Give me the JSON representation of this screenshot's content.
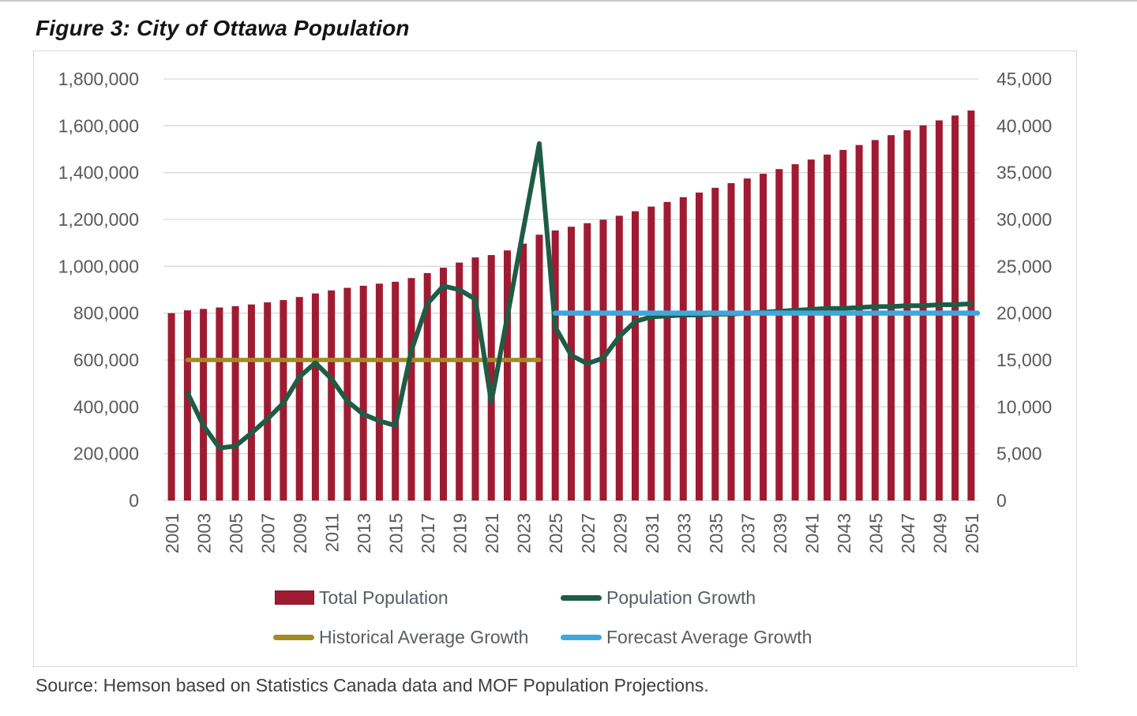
{
  "page": {
    "title": "Figure 3: City of Ottawa Population",
    "source_note": "Source: Hemson based on Statistics Canada data and MOF Population Projections."
  },
  "legend": [
    {
      "label": "Total Population",
      "swatch": "bar",
      "color": "#9e1b32"
    },
    {
      "label": "Population Growth",
      "swatch": "line",
      "color": "#1e5c45"
    },
    {
      "label": "Historical Average Growth",
      "swatch": "line",
      "color": "#a18c24"
    },
    {
      "label": "Forecast Average Growth",
      "swatch": "line",
      "color": "#3fa7dc"
    }
  ],
  "chart_data": {
    "type": "bar",
    "subtype": "combo-bar-line",
    "title": "Figure 3: City of Ottawa Population",
    "grid": true,
    "legend_position": "bottom",
    "x": [
      2001,
      2002,
      2003,
      2004,
      2005,
      2006,
      2007,
      2008,
      2009,
      2010,
      2011,
      2012,
      2013,
      2014,
      2015,
      2016,
      2017,
      2018,
      2019,
      2020,
      2021,
      2022,
      2023,
      2024,
      2025,
      2026,
      2027,
      2028,
      2029,
      2030,
      2031,
      2032,
      2033,
      2034,
      2035,
      2036,
      2037,
      2038,
      2039,
      2040,
      2041,
      2042,
      2043,
      2044,
      2045,
      2046,
      2047,
      2048,
      2049,
      2050,
      2051
    ],
    "x_tick_labels": [
      "2001",
      "2003",
      "2005",
      "2007",
      "2009",
      "2011",
      "2013",
      "2015",
      "2017",
      "2019",
      "2021",
      "2023",
      "2025",
      "2027",
      "2029",
      "2031",
      "2033",
      "2035",
      "2037",
      "2039",
      "2041",
      "2043",
      "2045",
      "2047",
      "2049",
      "2051"
    ],
    "left_axis": {
      "min": 0,
      "max": 1800000,
      "step": 200000,
      "tick_labels": [
        "0",
        "200,000",
        "400,000",
        "600,000",
        "800,000",
        "1,000,000",
        "1,200,000",
        "1,400,000",
        "1,600,000",
        "1,800,000"
      ]
    },
    "right_axis": {
      "min": 0,
      "max": 45000,
      "step": 5000,
      "tick_labels": [
        "0",
        "5,000",
        "10,000",
        "15,000",
        "20,000",
        "25,000",
        "30,000",
        "35,000",
        "40,000",
        "45,000"
      ]
    },
    "series": [
      {
        "name": "Total Population",
        "type": "bar",
        "axis": "left",
        "color": "#9e1b32",
        "values": [
          800000,
          812000,
          818000,
          824000,
          830000,
          837000,
          846000,
          856000,
          869000,
          884000,
          897000,
          908000,
          917000,
          926000,
          934000,
          950000,
          971000,
          994000,
          1016000,
          1038000,
          1048000,
          1068000,
          1097000,
          1135000,
          1153000,
          1169000,
          1184000,
          1199000,
          1216000,
          1235000,
          1255000,
          1275000,
          1295000,
          1315000,
          1335000,
          1355000,
          1375000,
          1395000,
          1415000,
          1436000,
          1456000,
          1477000,
          1497000,
          1518000,
          1539000,
          1560000,
          1581000,
          1602000,
          1623000,
          1644000,
          1665000
        ]
      },
      {
        "name": "Population Growth",
        "type": "line",
        "axis": "right",
        "color": "#1e5c45",
        "x_start": 2002,
        "values": [
          11500,
          8000,
          5600,
          5800,
          7200,
          8700,
          10400,
          13200,
          14700,
          13000,
          10600,
          9200,
          8500,
          8000,
          16000,
          21000,
          22900,
          22500,
          21500,
          10500,
          19600,
          28900,
          38100,
          18500,
          15500,
          14600,
          15200,
          17500,
          19100,
          19600,
          19700,
          19800,
          19800,
          19900,
          19900,
          20000,
          20100,
          20200,
          20300,
          20400,
          20500,
          20500,
          20600,
          20700,
          20700,
          20800,
          20800,
          20900,
          20900,
          21000
        ]
      },
      {
        "name": "Historical Average Growth",
        "type": "line",
        "axis": "right",
        "color": "#a18c24",
        "value": 15000,
        "x_range": [
          2002,
          2024
        ]
      },
      {
        "name": "Forecast Average Growth",
        "type": "line",
        "axis": "right",
        "color": "#3fa7dc",
        "value": 20000,
        "x_range": [
          2025,
          2051
        ]
      }
    ]
  }
}
